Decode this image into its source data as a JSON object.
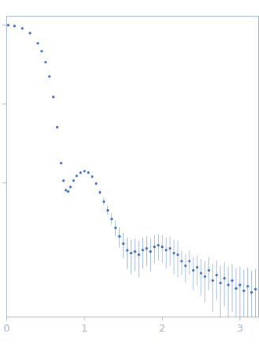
{
  "chart_data": {
    "type": "scatter",
    "marker": "dot",
    "color": "#3b6cc6",
    "log": "y",
    "tick_labels": "x",
    "xlim": [
      0,
      3.24
    ],
    "ylim": [
      0.0002,
      1.3
    ],
    "xticks": [
      0,
      1,
      2,
      3
    ],
    "yticks": [
      0.01,
      0.1,
      1
    ],
    "x": [
      0.02,
      0.1,
      0.2,
      0.3,
      0.4,
      0.45,
      0.5,
      0.55,
      0.6,
      0.65,
      0.7,
      0.73,
      0.76,
      0.79,
      0.82,
      0.86,
      0.9,
      0.95,
      1.0,
      1.05,
      1.1,
      1.15,
      1.2,
      1.25,
      1.3,
      1.35,
      1.4,
      1.45,
      1.5,
      1.55,
      1.6,
      1.65,
      1.7,
      1.75,
      1.8,
      1.85,
      1.9,
      1.95,
      2.0,
      2.05,
      2.1,
      2.15,
      2.2,
      2.25,
      2.3,
      2.35,
      2.4,
      2.45,
      2.5,
      2.55,
      2.6,
      2.65,
      2.7,
      2.75,
      2.8,
      2.85,
      2.9,
      2.95,
      3.0,
      3.05,
      3.1,
      3.15,
      3.2
    ],
    "values": [
      1.0,
      0.977,
      0.912,
      0.794,
      0.589,
      0.468,
      0.339,
      0.224,
      0.123,
      0.051,
      0.0178,
      0.0107,
      0.0081,
      0.0078,
      0.0089,
      0.0107,
      0.0123,
      0.0135,
      0.0141,
      0.0135,
      0.012,
      0.0098,
      0.0076,
      0.0058,
      0.0045,
      0.0035,
      0.0027,
      0.0021,
      0.0017,
      0.0014,
      0.00129,
      0.00135,
      0.00123,
      0.00141,
      0.00148,
      0.00135,
      0.00155,
      0.00162,
      0.00155,
      0.00141,
      0.00148,
      0.00129,
      0.00123,
      0.00102,
      0.00089,
      0.00102,
      0.00078,
      0.00085,
      0.00072,
      0.00065,
      0.00078,
      0.00058,
      0.00068,
      0.00054,
      0.00062,
      0.00051,
      0.00058,
      0.00046,
      0.00051,
      0.00043,
      0.00049,
      0.00041,
      0.00045
    ],
    "errors": [
      0.002,
      0.002,
      0.002,
      0.002,
      0.002,
      0.002,
      0.002,
      0.002,
      0.001,
      0.0008,
      0.0004,
      0.0003,
      0.0003,
      0.0003,
      0.0003,
      0.0003,
      0.0004,
      0.0004,
      0.0005,
      0.0005,
      0.0005,
      0.0005,
      0.0005,
      0.0006,
      0.0006,
      0.0006,
      0.0006,
      0.0006,
      0.0006,
      0.0006,
      0.0006,
      0.0006,
      0.0006,
      0.0006,
      0.0006,
      0.0006,
      0.0006,
      0.0006,
      0.0006,
      0.0006,
      0.0006,
      0.0006,
      0.0006,
      0.00035,
      0.00035,
      0.00035,
      0.00035,
      0.00035,
      0.00035,
      0.00035,
      0.00035,
      0.00035,
      0.00035,
      0.00035,
      0.00035,
      0.00035,
      0.00035,
      0.00035,
      0.00035,
      0.00035,
      0.00035,
      0.00035,
      0.00035
    ]
  }
}
